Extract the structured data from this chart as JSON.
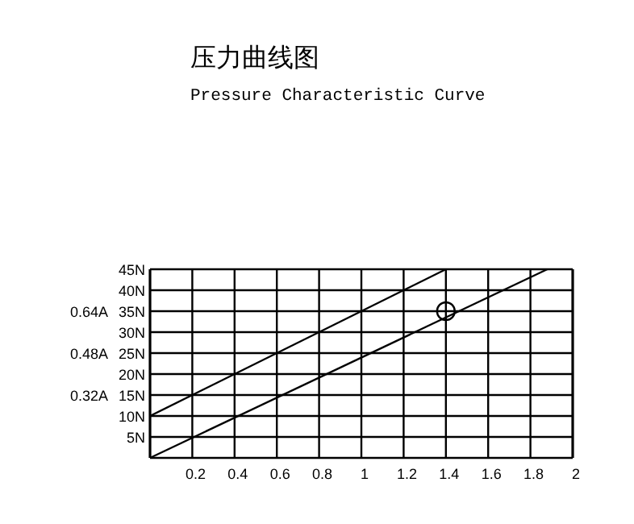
{
  "chart_data": {
    "type": "line",
    "title": "压力曲线图",
    "subtitle": "Pressure Characteristic Curve",
    "grid": true,
    "xlim": [
      0,
      2
    ],
    "xticks": [
      {
        "value": 0,
        "label": null
      },
      0.2,
      0.4,
      0.6,
      0.8,
      1,
      1.2,
      1.4,
      1.6,
      1.8,
      2
    ],
    "ylim": [
      0,
      45
    ],
    "yticks": [
      {
        "value": 0,
        "label": null
      },
      {
        "value": 5,
        "label": "5N"
      },
      {
        "value": 10,
        "label": "10N"
      },
      {
        "value": 15,
        "label": "15N"
      },
      {
        "value": 20,
        "label": "20N"
      },
      {
        "value": 25,
        "label": "25N"
      },
      {
        "value": 30,
        "label": "30N"
      },
      {
        "value": 35,
        "label": "35N"
      },
      {
        "value": 40,
        "label": "40N"
      },
      {
        "value": 45,
        "label": "45N"
      }
    ],
    "y2lim": [
      0.08,
      0.8
    ],
    "y2ticks": [
      {
        "value": 0.32,
        "label": "0.32A"
      },
      {
        "value": 0.48,
        "label": "0.48A"
      },
      {
        "value": 0.64,
        "label": "0.64A"
      }
    ],
    "series": [
      {
        "color": "#000000",
        "x": [
          0,
          1.4
        ],
        "values": [
          10,
          45
        ]
      },
      {
        "color": "#000000",
        "x": [
          0,
          1.88
        ],
        "values": [
          0,
          45
        ]
      },
      {
        "type": "scatter",
        "color": "#000000",
        "marker": "circle",
        "x": [
          1.4
        ],
        "values": [
          35
        ]
      }
    ]
  }
}
